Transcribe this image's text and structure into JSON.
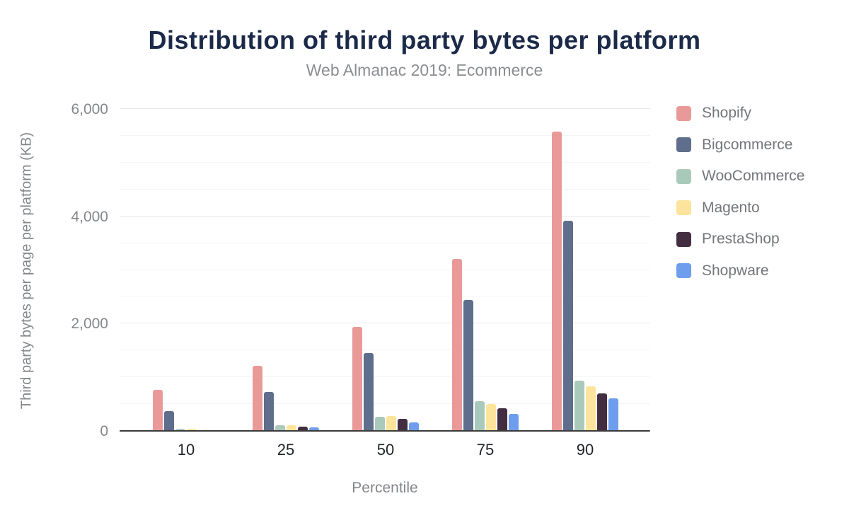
{
  "header": {
    "title": "Distribution of third party bytes per platform",
    "subtitle": "Web Almanac 2019: Ecommerce"
  },
  "chart_data": {
    "type": "bar",
    "title": "Distribution of third party bytes per platform",
    "subtitle": "Web Almanac 2019: Ecommerce",
    "categories": [
      "10",
      "25",
      "50",
      "75",
      "90"
    ],
    "xlabel": "Percentile",
    "ylabel": "Third party bytes per page per platform (KB)",
    "ylim": [
      0,
      6000
    ],
    "ytick_major_interval": 2000,
    "ytick_minor_interval": 500,
    "yticks": [
      {
        "value": 0,
        "label": "0"
      },
      {
        "value": 2000,
        "label": "2,000"
      },
      {
        "value": 4000,
        "label": "4,000"
      },
      {
        "value": 6000,
        "label": "6,000"
      }
    ],
    "grid": true,
    "legend_position": "right",
    "series": [
      {
        "name": "Shopify",
        "color": "#e99a98",
        "values": [
          770,
          1210,
          1940,
          3200,
          5580
        ]
      },
      {
        "name": "Bigcommerce",
        "color": "#5f6e8c",
        "values": [
          375,
          730,
          1450,
          2440,
          3920
        ]
      },
      {
        "name": "WooCommerce",
        "color": "#a9cabb",
        "values": [
          45,
          100,
          265,
          555,
          930
        ]
      },
      {
        "name": "Magento",
        "color": "#fce49c",
        "values": [
          40,
          110,
          280,
          495,
          825
        ]
      },
      {
        "name": "PrestaShop",
        "color": "#432e41",
        "values": [
          0,
          80,
          220,
          425,
          695
        ]
      },
      {
        "name": "Shopware",
        "color": "#6d9dec",
        "values": [
          0,
          60,
          155,
          315,
          605
        ]
      }
    ],
    "colors": {
      "title": "#1c2a49",
      "subtitle": "#8a8d91",
      "axis_text": "#84878b",
      "x_tick_text": "#1f2328",
      "axis_line": "#3a3a3a",
      "grid_major": "#e7e8ea",
      "grid_minor": "#f4f4f6"
    }
  }
}
